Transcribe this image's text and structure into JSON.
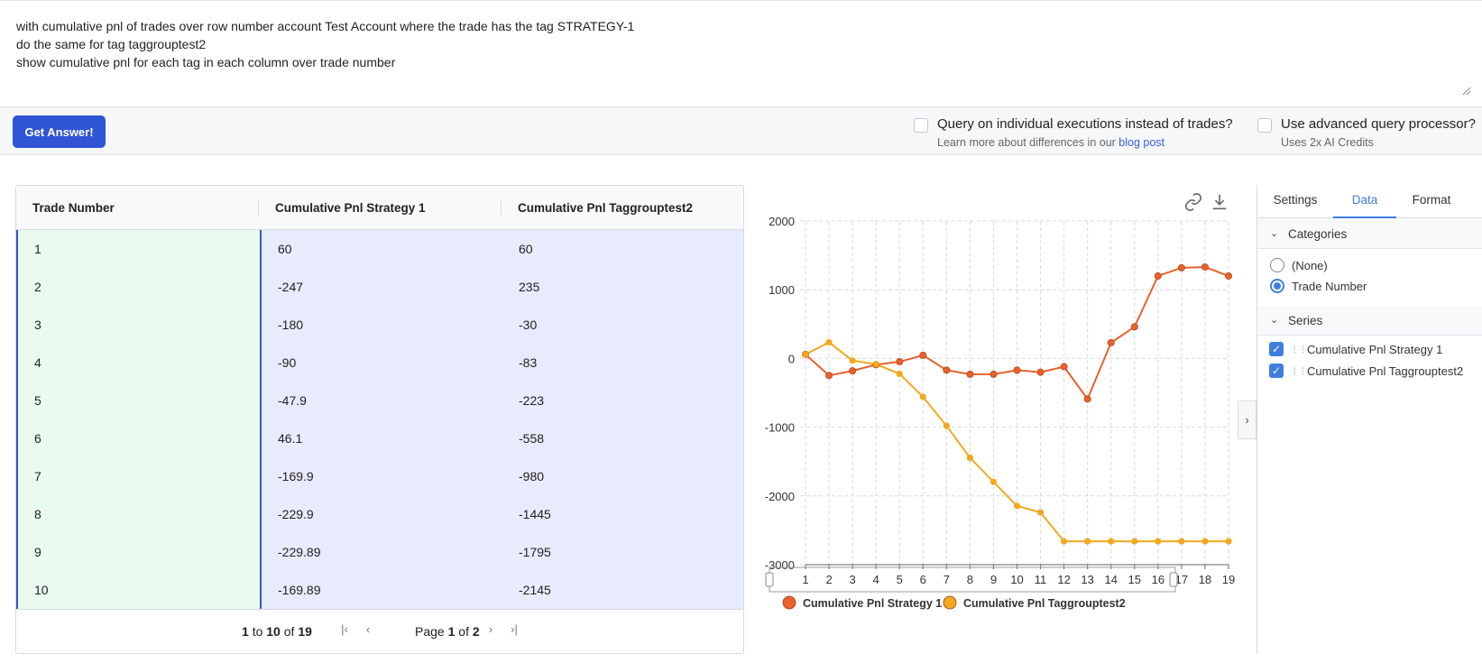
{
  "query": {
    "lines": [
      "with cumulative pnl of trades over row number account Test Account where the trade has the tag STRATEGY-1",
      "do the same for tag taggrouptest2",
      "show cumulative pnl for each tag in each column over trade number"
    ]
  },
  "actions": {
    "answer_label": "Get Answer!",
    "option1": {
      "label": "Query on individual executions instead of trades?",
      "sub_prefix": "Learn more about differences in our",
      "link": "blog post"
    },
    "option2": {
      "label": "Use advanced query processor?",
      "sub": "Uses 2x AI Credits"
    }
  },
  "grid": {
    "columns": [
      "Trade Number",
      "Cumulative Pnl Strategy 1",
      "Cumulative Pnl Taggrouptest2"
    ],
    "rows": [
      [
        "1",
        "60",
        "60"
      ],
      [
        "2",
        "-247",
        "235"
      ],
      [
        "3",
        "-180",
        "-30"
      ],
      [
        "4",
        "-90",
        "-83"
      ],
      [
        "5",
        "-47.9",
        "-223"
      ],
      [
        "6",
        "46.1",
        "-558"
      ],
      [
        "7",
        "-169.9",
        "-980"
      ],
      [
        "8",
        "-229.9",
        "-1445"
      ],
      [
        "9",
        "-229.89",
        "-1795"
      ],
      [
        "10",
        "-169.89",
        "-2145"
      ]
    ],
    "pagination": {
      "from": "1",
      "to_word": "to",
      "to": "10",
      "of_word": "of",
      "total": "19",
      "page_word": "Page",
      "page": "1",
      "pages": "2"
    }
  },
  "chart_data": {
    "type": "line",
    "x": [
      1,
      2,
      3,
      4,
      5,
      6,
      7,
      8,
      9,
      10,
      11,
      12,
      13,
      14,
      15,
      16,
      17,
      18,
      19
    ],
    "series": [
      {
        "name": "Cumulative Pnl Strategy 1",
        "color": "#e8612e",
        "values": [
          60,
          -247,
          -180,
          -90,
          -47.9,
          46.1,
          -169.9,
          -229.9,
          -229.89,
          -169.89,
          -200,
          -120,
          -590,
          230,
          460,
          1200,
          1320,
          1330,
          1200
        ]
      },
      {
        "name": "Cumulative Pnl Taggrouptest2",
        "color": "#f2a91f",
        "values": [
          60,
          235,
          -30,
          -83,
          -223,
          -558,
          -980,
          -1445,
          -1795,
          -2145,
          -2240,
          -2660,
          -2660,
          -2660,
          -2660,
          -2660,
          -2660,
          -2660,
          -2660
        ]
      }
    ],
    "yticks": [
      "2000",
      "1000",
      "0",
      "-1000",
      "-2000",
      "-3000"
    ],
    "ylim": [
      -3000,
      2000
    ],
    "grid": true,
    "legend": "bottom"
  },
  "side": {
    "tabs": [
      "Settings",
      "Data",
      "Format"
    ],
    "active_tab": "Data",
    "categories_title": "Categories",
    "categories": [
      "(None)",
      "Trade Number"
    ],
    "series_title": "Series",
    "series": [
      "Cumulative Pnl Strategy 1",
      "Cumulative Pnl Taggrouptest2"
    ]
  },
  "icons": {
    "link": "link-icon",
    "download": "download-icon",
    "expand": "chevron-right-icon"
  }
}
